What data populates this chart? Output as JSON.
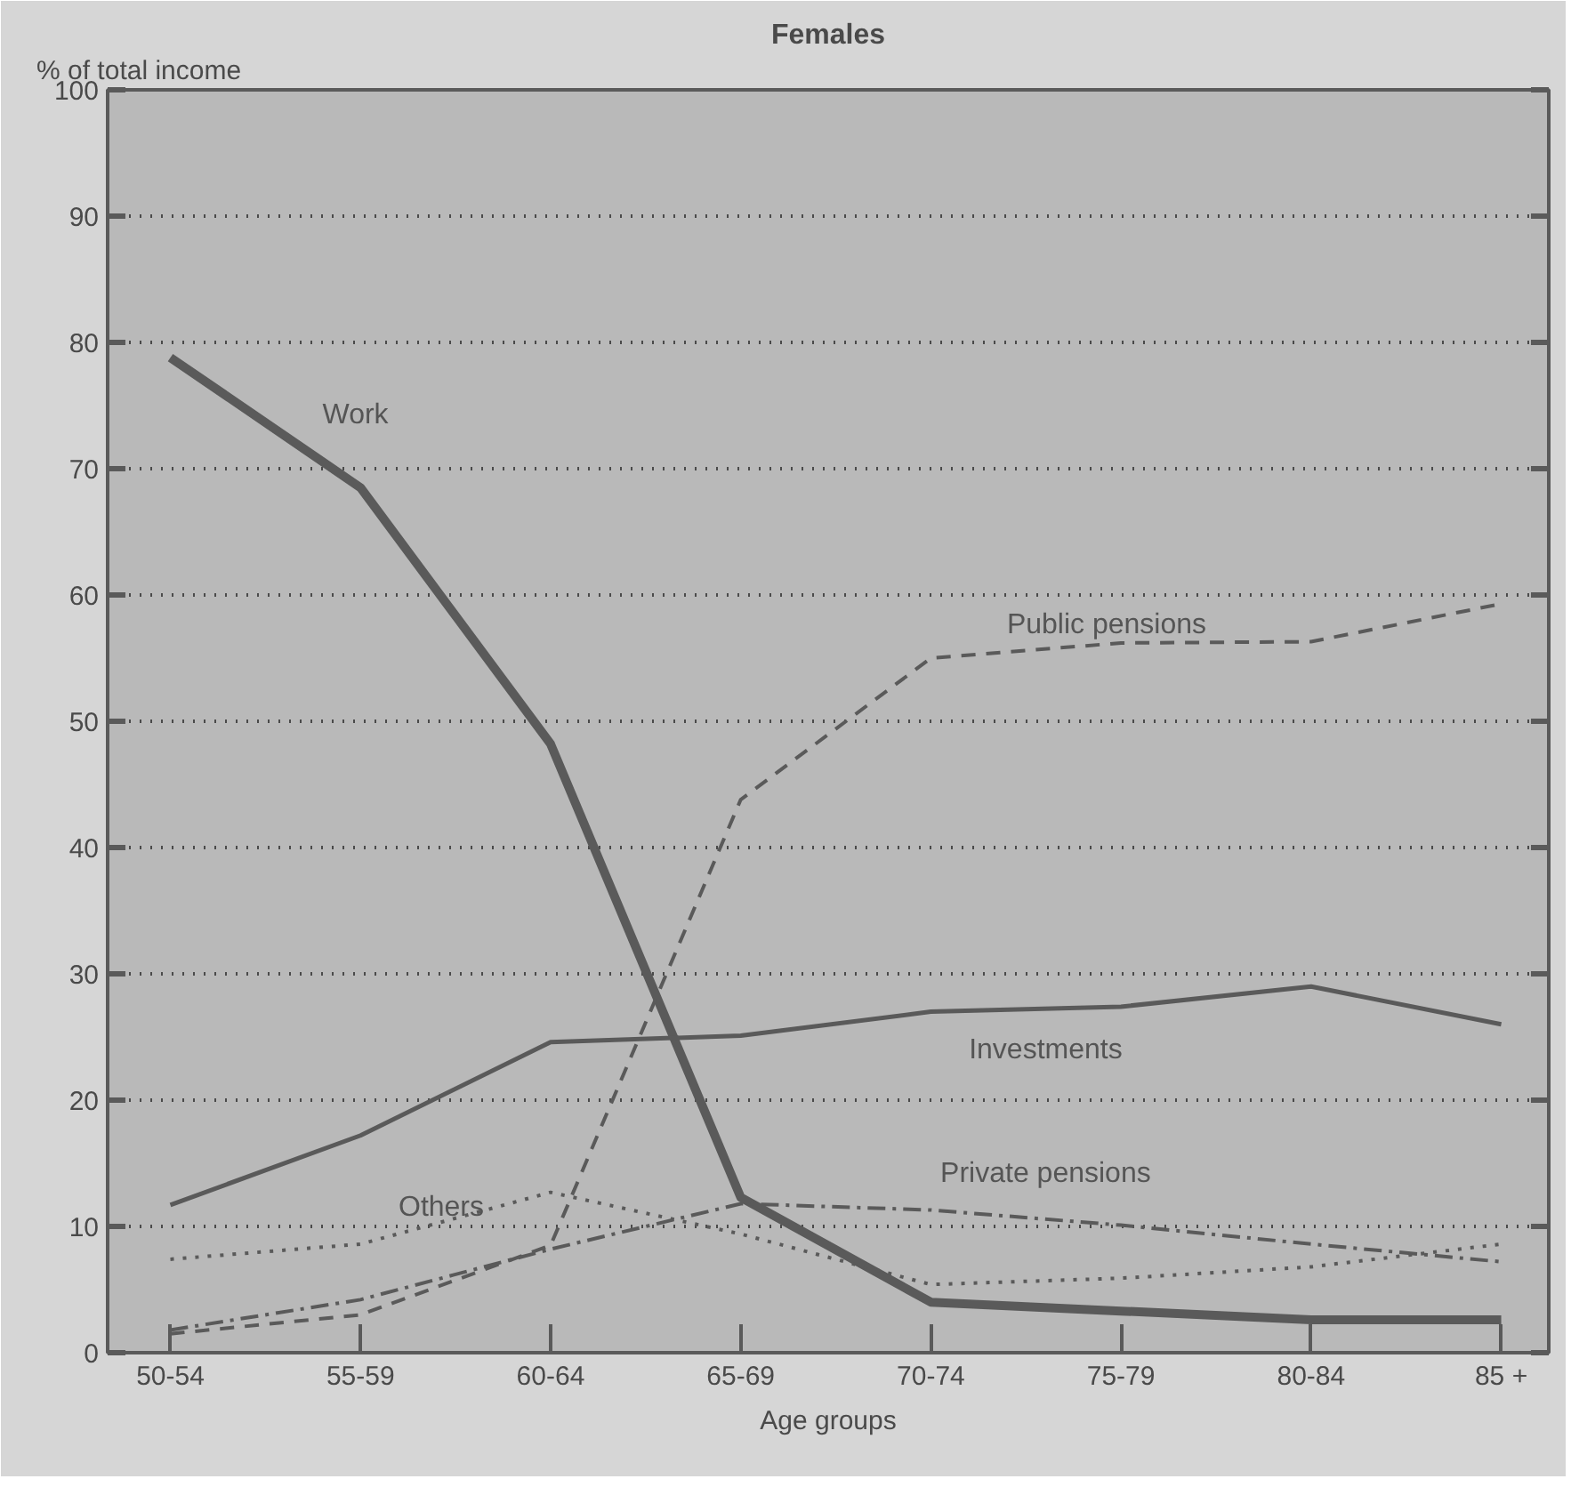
{
  "chart_data": {
    "type": "line",
    "title": "Females",
    "ylabel": "% of total income",
    "xlabel": "Age groups",
    "categories": [
      "50-54",
      "55-59",
      "60-64",
      "65-69",
      "70-74",
      "75-79",
      "80-84",
      "85 +"
    ],
    "ylim": [
      0,
      100
    ],
    "yticks": [
      0,
      10,
      20,
      30,
      40,
      50,
      60,
      70,
      80,
      90,
      100
    ],
    "grid": "y",
    "legend": false,
    "series": [
      {
        "name": "Work",
        "color": "#5a5a5a",
        "line_style": "solid",
        "values": [
          78.8,
          68.5,
          48.2,
          12.3,
          4.0,
          3.3,
          2.6,
          2.6
        ]
      },
      {
        "name": "Public pensions",
        "color": "#5a5a5a",
        "line_style": "dashed",
        "values": [
          1.5,
          3.0,
          8.5,
          43.8,
          55.0,
          56.2,
          56.3,
          59.3
        ]
      },
      {
        "name": "Investments",
        "color": "#5a5a5a",
        "line_style": "solid",
        "values": [
          11.7,
          17.2,
          24.6,
          25.1,
          27.0,
          27.4,
          29.0,
          26.0
        ]
      },
      {
        "name": "Private pensions",
        "color": "#5a5a5a",
        "line_style": "dashdot",
        "values": [
          1.8,
          4.2,
          8.2,
          11.8,
          11.3,
          10.1,
          8.6,
          7.2
        ]
      },
      {
        "name": "Others",
        "color": "#5a5a5a",
        "line_style": "dotted",
        "values": [
          7.4,
          8.6,
          12.7,
          9.4,
          5.4,
          5.9,
          6.8,
          8.6
        ]
      }
    ]
  }
}
